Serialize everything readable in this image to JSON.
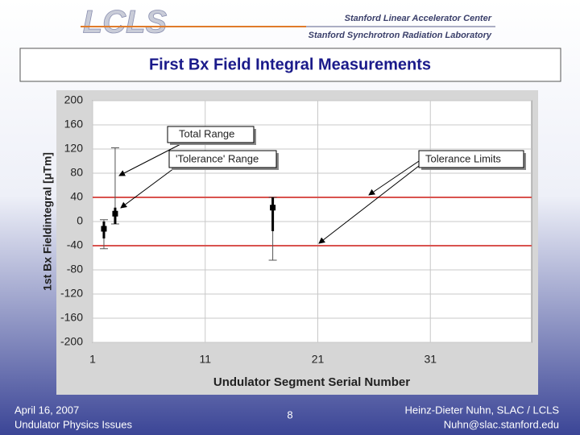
{
  "header": {
    "logo": "LCLS",
    "org1": "Stanford Linear Accelerator Center",
    "org2": "Stanford Synchrotron Radiation Laboratory",
    "title": "First Bx Field Integral Measurements"
  },
  "chart_data": {
    "type": "scatter",
    "x_label": "Undulator Segment Serial Number",
    "y_label": "1st Bx Fieldintegral [μTm]",
    "x": [
      2,
      3,
      17
    ],
    "values": [
      -12,
      13,
      23
    ],
    "tol_low": [
      -28,
      -4,
      -16
    ],
    "tol_high": [
      0,
      23,
      40
    ],
    "total_low": [
      -45,
      -4,
      -64
    ],
    "total_high": [
      3,
      122,
      40
    ],
    "color": "#000000",
    "limits": [
      40,
      -40
    ],
    "limit_color": "#d9534f",
    "xlim": [
      1,
      40
    ],
    "xticks": [
      1,
      11,
      21,
      31
    ],
    "ylim": [
      -200,
      200
    ],
    "yticks": [
      200,
      160,
      120,
      80,
      40,
      0,
      -40,
      -80,
      -120,
      -160,
      -200
    ],
    "grid": true,
    "annotations": [
      "Total Range",
      "'Tolerance' Range",
      "Tolerance Limits"
    ]
  },
  "footer": {
    "date": "April 16, 2007",
    "subtitle": "Undulator Physics Issues",
    "page": "8",
    "author": "Heinz-Dieter Nuhn, SLAC / LCLS",
    "email": "Nuhn@slac.stanford.edu"
  }
}
